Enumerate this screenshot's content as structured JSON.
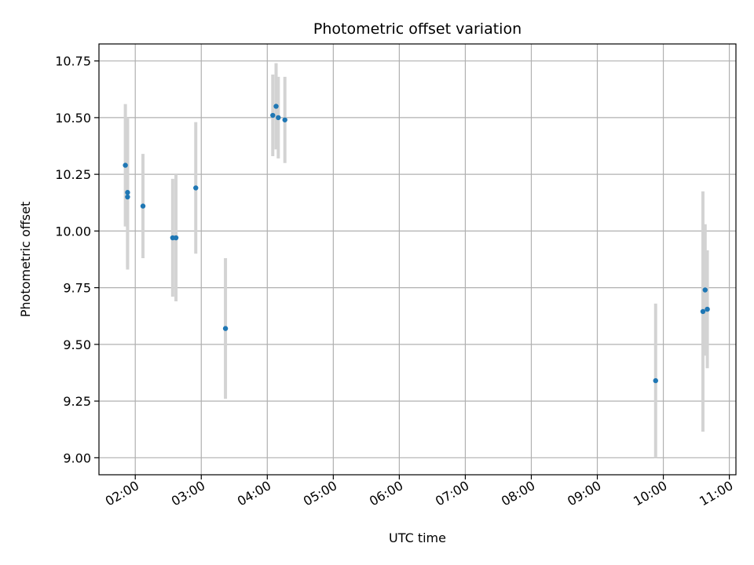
{
  "chart_data": {
    "type": "scatter",
    "title": "Photometric offset variation",
    "xlabel": "UTC time",
    "ylabel": "Photometric offset",
    "x_is_time": true,
    "xlim": [
      "01:27",
      "11:06"
    ],
    "ylim": [
      8.925,
      10.825
    ],
    "x_ticks": [
      "02:00",
      "03:00",
      "04:00",
      "05:00",
      "06:00",
      "07:00",
      "08:00",
      "09:00",
      "10:00",
      "11:00"
    ],
    "y_ticks": [
      9.0,
      9.25,
      9.5,
      9.75,
      10.0,
      10.25,
      10.5,
      10.75
    ],
    "y_tick_labels": [
      "9.00",
      "9.25",
      "9.50",
      "9.75",
      "10.00",
      "10.25",
      "10.50",
      "10.75"
    ],
    "grid": true,
    "marker_color": "#1f77b4",
    "errorbar_color": "#d3d3d3",
    "points": [
      {
        "x": "01:51",
        "y": 10.29,
        "yerr": 0.27
      },
      {
        "x": "01:53",
        "y": 10.17,
        "yerr": 0.33
      },
      {
        "x": "01:53",
        "y": 10.15,
        "yerr": 0.32
      },
      {
        "x": "02:07",
        "y": 10.11,
        "yerr": 0.23
      },
      {
        "x": "02:34",
        "y": 9.97,
        "yerr": 0.26
      },
      {
        "x": "02:37",
        "y": 9.97,
        "yerr": 0.28
      },
      {
        "x": "02:55",
        "y": 10.19,
        "yerr": 0.29
      },
      {
        "x": "03:22",
        "y": 9.57,
        "yerr": 0.31
      },
      {
        "x": "04:05",
        "y": 10.51,
        "yerr": 0.18
      },
      {
        "x": "04:08",
        "y": 10.55,
        "yerr": 0.19
      },
      {
        "x": "04:10",
        "y": 10.5,
        "yerr": 0.18
      },
      {
        "x": "04:16",
        "y": 10.49,
        "yerr": 0.19
      },
      {
        "x": "09:53",
        "y": 9.34,
        "yerr": 0.34
      },
      {
        "x": "10:36",
        "y": 9.645,
        "yerr": 0.53
      },
      {
        "x": "10:38",
        "y": 9.74,
        "yerr": 0.29
      },
      {
        "x": "10:40",
        "y": 9.655,
        "yerr": 0.26
      }
    ]
  }
}
